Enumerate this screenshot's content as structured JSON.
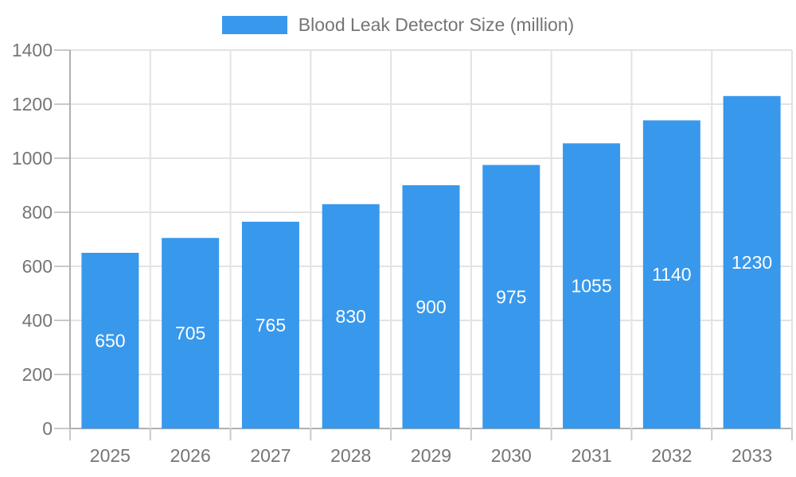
{
  "chart_data": {
    "type": "bar",
    "title": "Blood Leak Detector Size (million)",
    "categories": [
      "2025",
      "2026",
      "2027",
      "2028",
      "2029",
      "2030",
      "2031",
      "2032",
      "2033"
    ],
    "values": [
      650,
      705,
      765,
      830,
      900,
      975,
      1055,
      1140,
      1230
    ],
    "value_labels": [
      "650",
      "705",
      "765",
      "830",
      "900",
      "975",
      "1055",
      "1140",
      "1230"
    ],
    "xlabel": "",
    "ylabel": "",
    "ylim": [
      0,
      1400
    ],
    "ytick_step": 200,
    "yticks": [
      "0",
      "200",
      "400",
      "600",
      "800",
      "1000",
      "1200",
      "1400"
    ],
    "grid": true,
    "legend": {
      "position": "top",
      "entries": [
        {
          "label": "Blood Leak Detector Size (million)",
          "color": "#3898ec"
        }
      ]
    },
    "colors": {
      "bar": "#3898ec",
      "axis_text": "#757575",
      "gridline": "#e3e3e3",
      "axis_line": "#b0b0b0",
      "tick": "#c9c9c9",
      "value_label": "#ffffff",
      "background": "#ffffff"
    }
  }
}
